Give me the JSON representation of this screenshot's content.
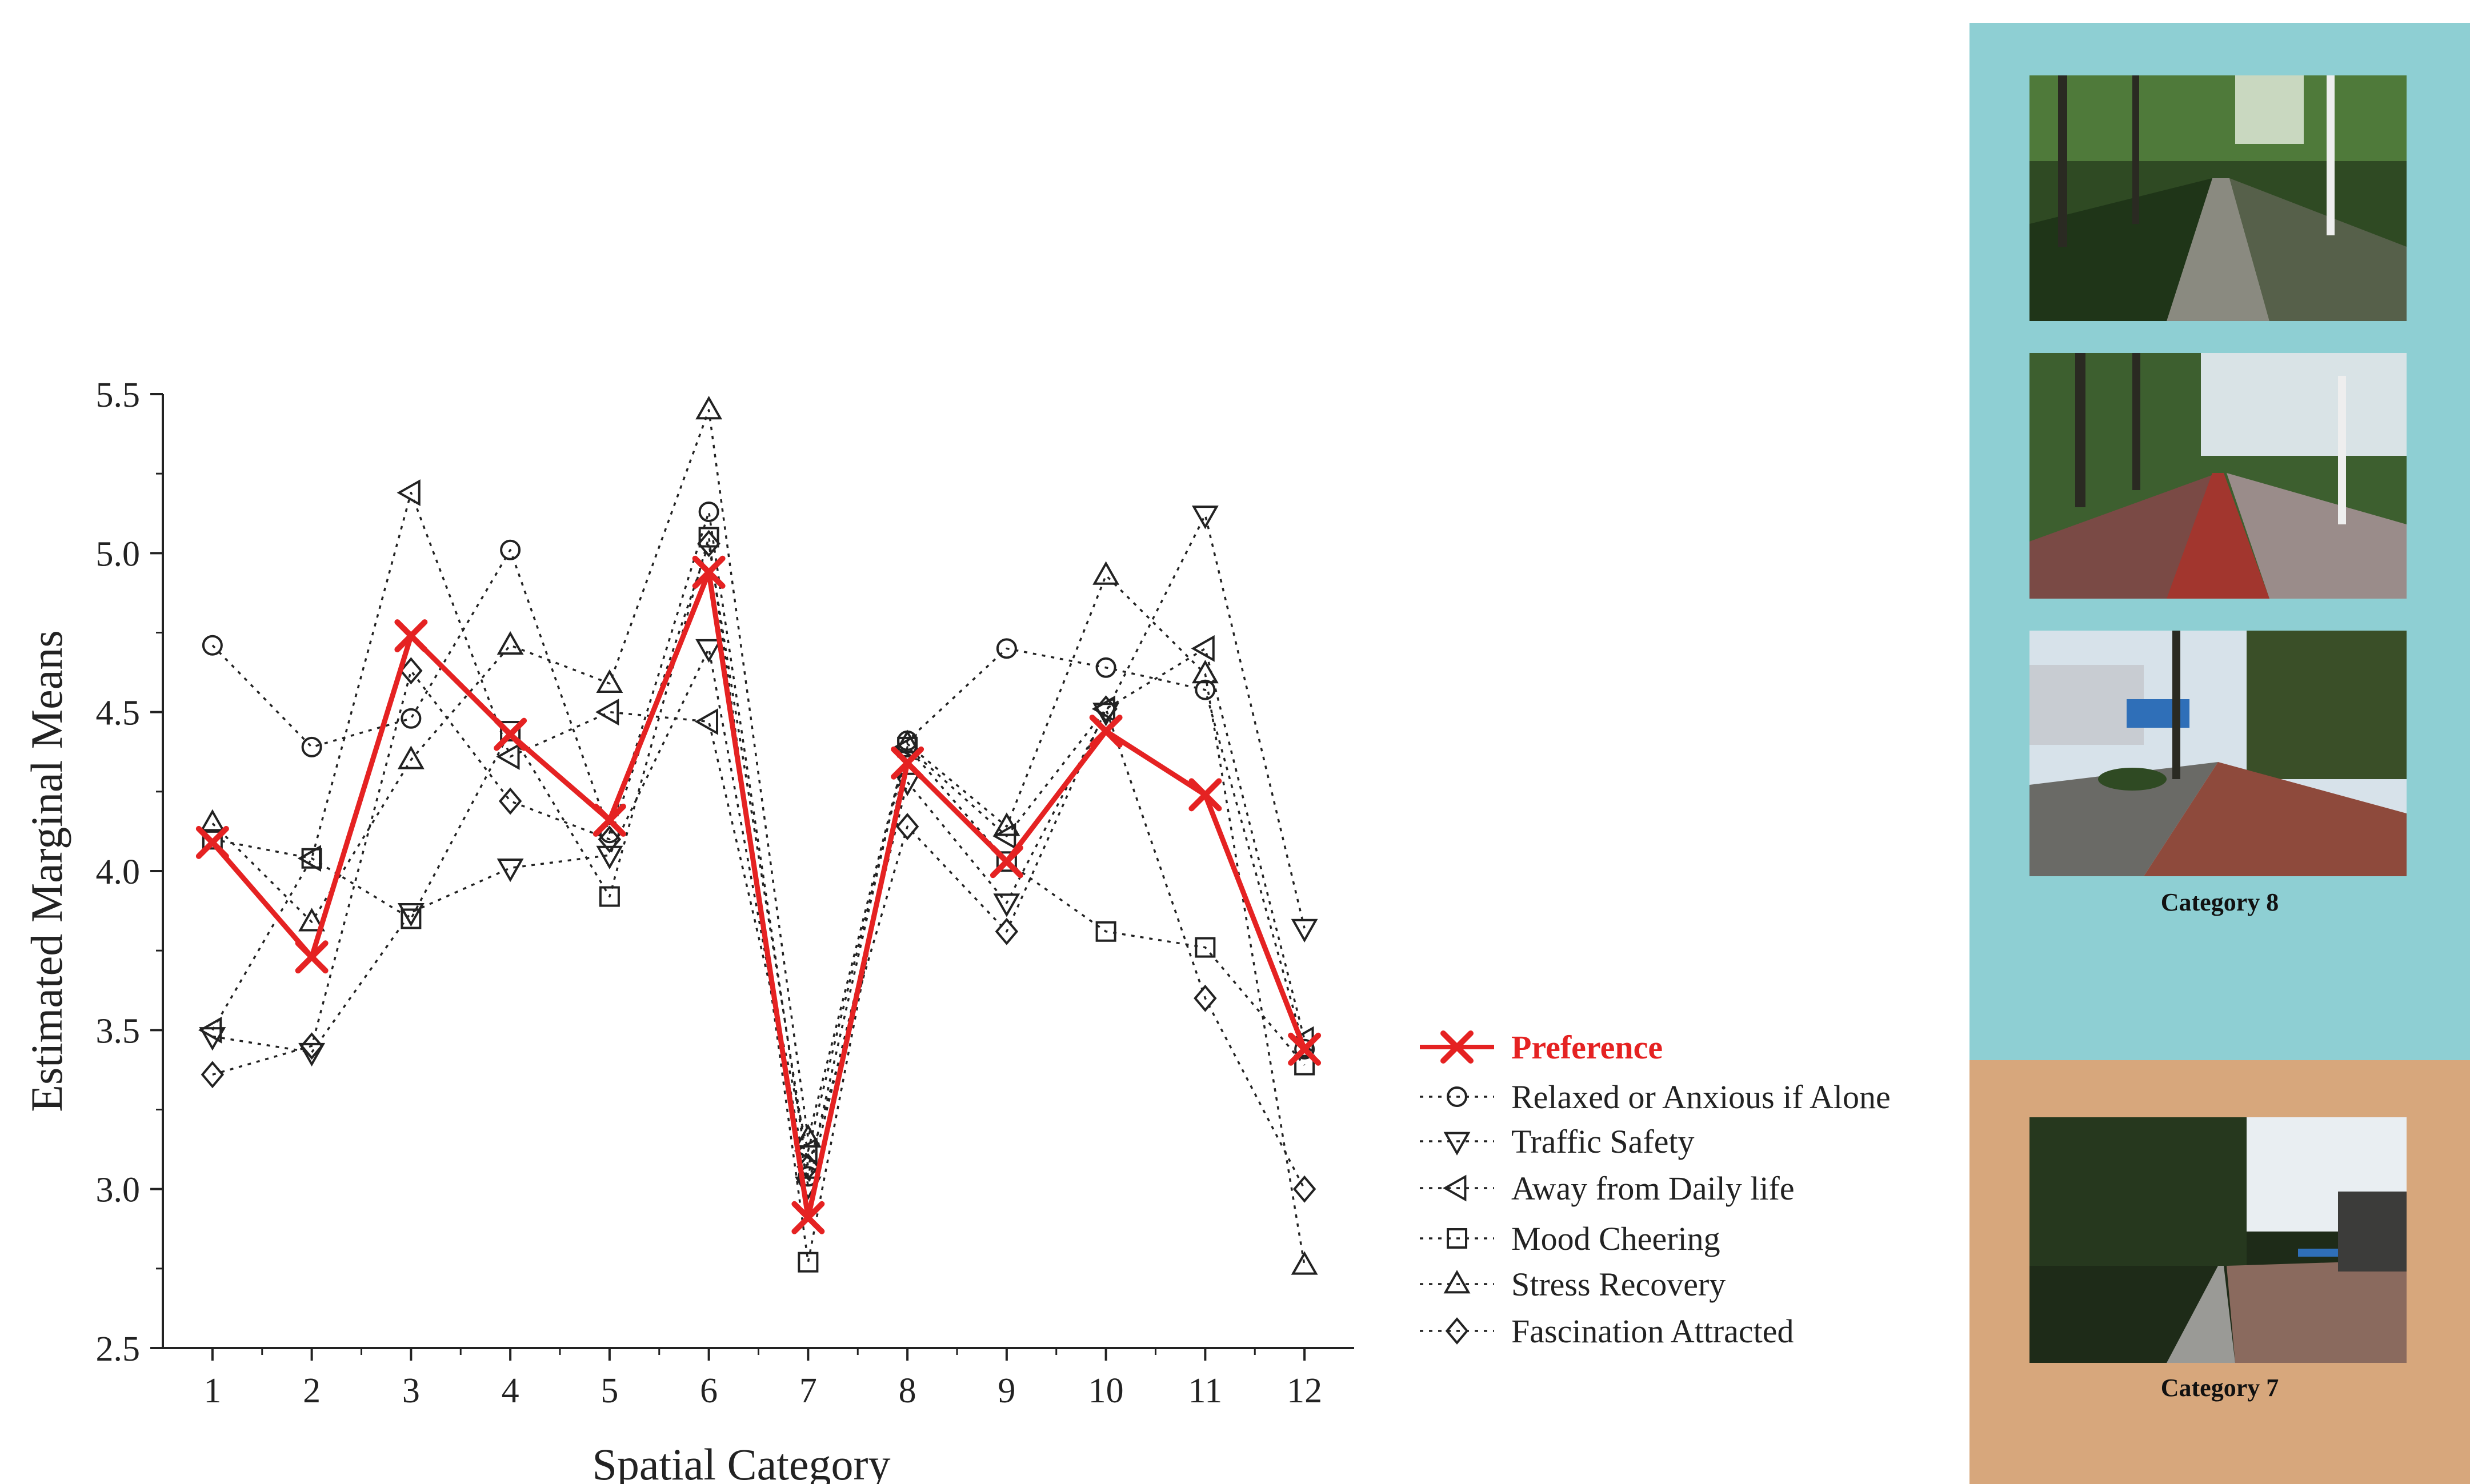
{
  "chart_data": {
    "type": "line",
    "title": "",
    "xlabel": "Spatial Category",
    "ylabel": "Estimated Marginal Means",
    "categories": [
      "1",
      "2",
      "3",
      "4",
      "5",
      "6",
      "7",
      "8",
      "9",
      "10",
      "11",
      "12"
    ],
    "x": [
      1,
      2,
      3,
      4,
      5,
      6,
      7,
      8,
      9,
      10,
      11,
      12
    ],
    "xlim": [
      0.5,
      12.5
    ],
    "ylim": [
      2.5,
      5.5
    ],
    "yticks": [
      2.5,
      3.0,
      3.5,
      4.0,
      4.5,
      5.0,
      5.5
    ],
    "ytick_labels": [
      "2.5",
      "3.0",
      "3.5",
      "4.0",
      "4.5",
      "5.0",
      "5.5"
    ],
    "grid": false,
    "legend_position": "bottom-right, outside plot",
    "series": [
      {
        "name": "Preference",
        "marker": "x",
        "style": "solid",
        "color": "#e52222",
        "values": [
          4.09,
          3.73,
          4.74,
          4.43,
          4.16,
          4.94,
          2.91,
          4.34,
          4.03,
          4.44,
          4.24,
          3.44
        ]
      },
      {
        "name": "Relaxed or Anxious if Alone",
        "marker": "circle",
        "style": "dotted",
        "color": "#222222",
        "values": [
          4.71,
          4.39,
          4.48,
          5.01,
          4.12,
          5.13,
          3.04,
          4.41,
          4.7,
          4.64,
          4.57,
          3.44
        ]
      },
      {
        "name": "Traffic Safety",
        "marker": "triangle-down",
        "style": "dotted",
        "color": "#222222",
        "values": [
          3.48,
          3.43,
          3.87,
          4.01,
          4.05,
          4.7,
          3.01,
          4.28,
          3.9,
          4.5,
          5.12,
          3.82
        ]
      },
      {
        "name": "Away from Daily life",
        "marker": "triangle-left",
        "style": "dotted",
        "color": "#222222",
        "values": [
          3.5,
          4.04,
          5.19,
          4.36,
          4.5,
          4.47,
          3.12,
          4.39,
          4.11,
          4.51,
          4.7,
          3.47
        ]
      },
      {
        "name": "Mood Cheering",
        "marker": "square",
        "style": "dotted",
        "color": "#222222",
        "values": [
          4.1,
          4.04,
          3.85,
          4.44,
          3.92,
          5.05,
          2.77,
          4.39,
          4.03,
          3.81,
          3.76,
          3.39
        ]
      },
      {
        "name": "Stress Recovery",
        "marker": "triangle-up",
        "style": "dotted",
        "color": "#222222",
        "values": [
          4.15,
          3.84,
          4.35,
          4.71,
          4.59,
          5.45,
          3.16,
          4.4,
          4.14,
          4.93,
          4.62,
          2.76
        ]
      },
      {
        "name": "Fascination Attracted",
        "marker": "diamond",
        "style": "dotted",
        "color": "#222222",
        "values": [
          3.36,
          3.45,
          4.63,
          4.22,
          4.1,
          5.03,
          3.07,
          4.14,
          3.81,
          4.51,
          3.6,
          3.0
        ]
      }
    ]
  },
  "side_panel": {
    "top_color": "#8ecfd3",
    "bottom_color": "#d7a77c",
    "caption_top": "Category 8",
    "caption_bottom": "Category 7"
  }
}
